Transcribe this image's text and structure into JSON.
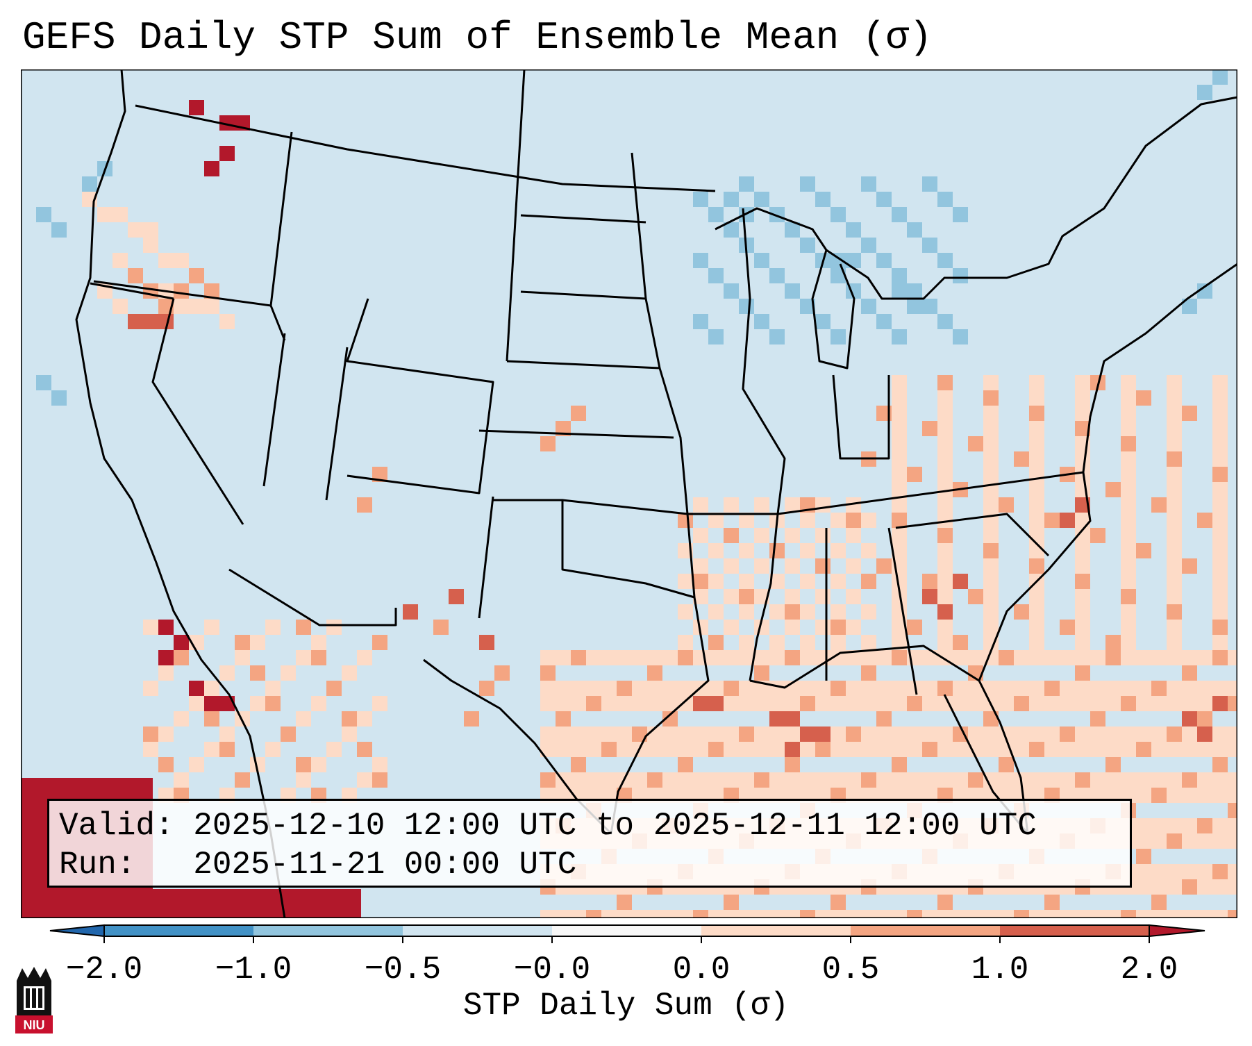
{
  "title": "GEFS Daily STP Sum of Ensemble Mean (σ)",
  "info": {
    "valid_label": "Valid:",
    "valid_value": "2025-12-10 12:00 UTC to 2025-12-11 12:00 UTC",
    "run_label": "Run:",
    "run_value": "2025-11-21 00:00 UTC"
  },
  "colorbar": {
    "label": "STP Daily Sum (σ)",
    "tick_labels": [
      "−2.0",
      "−1.0",
      "−0.5",
      "−0.0",
      "0.0",
      "0.5",
      "1.0",
      "2.0"
    ],
    "bins": [
      {
        "from": -2.0,
        "to": -1.0,
        "color": "#4292c6"
      },
      {
        "from": -1.0,
        "to": -0.5,
        "color": "#92c5de"
      },
      {
        "from": -0.5,
        "to": -0.0,
        "color": "#d1e5f0"
      },
      {
        "from": -0.0,
        "to": 0.0,
        "color": "#f7f7f7"
      },
      {
        "from": 0.0,
        "to": 0.5,
        "color": "#fddbc7"
      },
      {
        "from": 0.5,
        "to": 1.0,
        "color": "#f4a582"
      },
      {
        "from": 1.0,
        "to": 2.0,
        "color": "#d6604d"
      }
    ],
    "extend_low_color": "#2166ac",
    "extend_high_color": "#b2182b"
  },
  "colors": {
    "background_field": "#d1e5f0",
    "positive_low": "#fddbc7",
    "positive_mid": "#f4a582",
    "positive_high": "#d6604d",
    "positive_extreme": "#b2182b",
    "negative_mild": "#92c5de",
    "negative_strong": "#4292c6"
  },
  "logo": {
    "text": "NIU",
    "icon": "niu-logo-icon"
  }
}
